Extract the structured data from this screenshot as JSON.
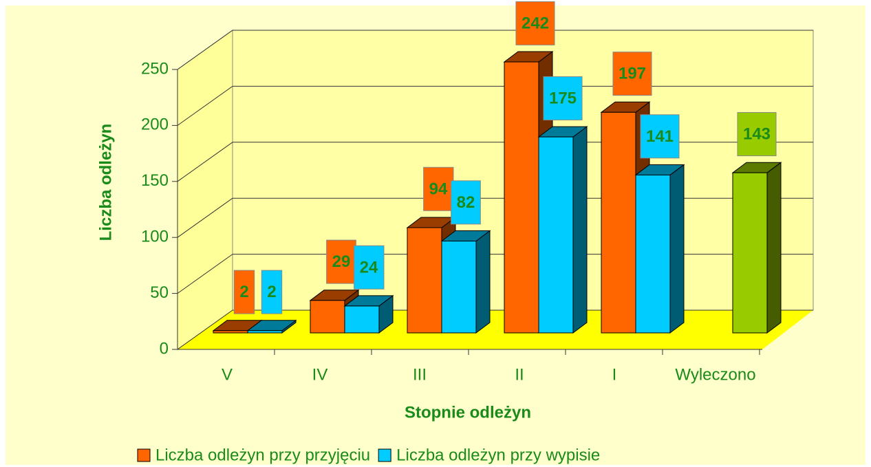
{
  "chart_data": {
    "type": "bar",
    "x_label": "Stopnie odleżyn",
    "y_label": "Liczba odleżyn",
    "categories": [
      "V",
      "IV",
      "III",
      "II",
      "I",
      "Wyleczono"
    ],
    "series": [
      {
        "name": "Liczba odleżyn przy przyjęciu",
        "color": "#ff6600",
        "values": [
          2,
          29,
          94,
          242,
          197,
          null
        ]
      },
      {
        "name": "Liczba odleżyn przy wypisie",
        "color": "#00ccff",
        "values": [
          2,
          24,
          82,
          175,
          141,
          143
        ],
        "point_colors": {
          "5": "#99cc00"
        }
      }
    ],
    "ylim": [
      0,
      250
    ],
    "yticks": [
      0,
      50,
      100,
      150,
      200,
      250
    ],
    "grid": true
  }
}
